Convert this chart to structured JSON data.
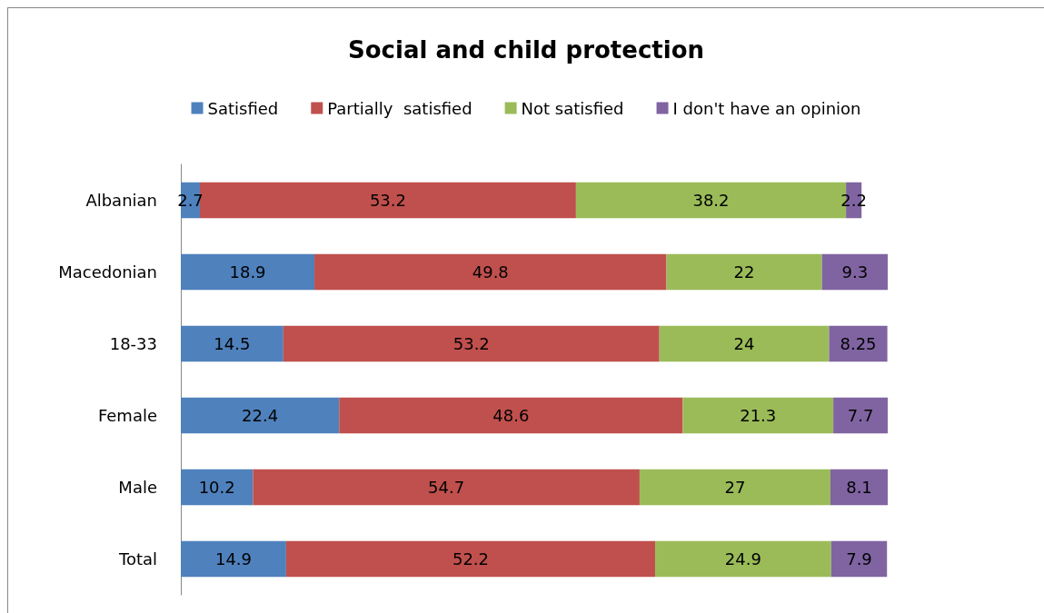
{
  "chart_data": {
    "type": "bar",
    "title": "Social and child protection",
    "orientation": "horizontal",
    "stacked": true,
    "data_labels": true,
    "legend": "top",
    "categories": [
      "Albanian",
      "Macedonian",
      "18-33",
      "Female",
      "Male",
      "Total"
    ],
    "series": [
      {
        "name": "Satisfied",
        "color": "#4f81bd",
        "values": [
          2.7,
          18.9,
          14.5,
          22.4,
          10.2,
          14.9
        ]
      },
      {
        "name": "Partially  satisfied",
        "color": "#c0504d",
        "values": [
          53.2,
          49.8,
          53.2,
          48.6,
          54.7,
          52.2
        ]
      },
      {
        "name": "Not satisfied",
        "color": "#9bbb59",
        "values": [
          38.2,
          22,
          24,
          21.3,
          27,
          24.9
        ]
      },
      {
        "name": "I don't have an opinion",
        "color": "#8064a2",
        "values": [
          2.2,
          9.3,
          8.25,
          7.7,
          8.1,
          7.9
        ]
      }
    ]
  }
}
